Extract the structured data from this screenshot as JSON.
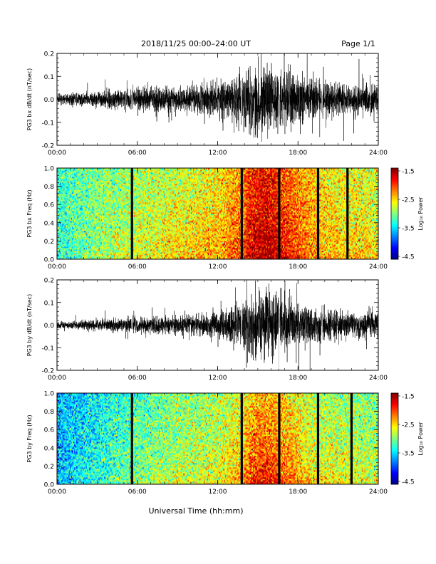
{
  "header": {
    "title": "2018/11/25  00:00–24:00 UT",
    "page_label": "Page 1/1"
  },
  "footer": {
    "xlabel": "Universal Time (hh:mm)"
  },
  "colorbar": {
    "ticks": [
      "-1.5",
      "-2.5",
      "-3.5",
      "-4.5"
    ],
    "label": "Log₁₀ Power",
    "range": [
      -4.5,
      -1.5
    ]
  },
  "chart_data": [
    {
      "type": "line",
      "ylabel": "PG3 bx dB/dt (nT/sec)",
      "xticks": [
        "00:00",
        "06:00",
        "12:00",
        "18:00",
        "24:00"
      ],
      "xlim": [
        0,
        24
      ],
      "ylim": [
        -0.2,
        0.2
      ],
      "yticks": [
        "-0.2",
        "-0.1",
        "0.0",
        "0.1",
        "0.2"
      ],
      "x": [
        0,
        2,
        4,
        6,
        8,
        10,
        12,
        13.5,
        14.5,
        15.5,
        16.5,
        17.5,
        18.5,
        19.5,
        20.5,
        21.5,
        22.5,
        23.5,
        24
      ],
      "amplitude": [
        0.02,
        0.03,
        0.04,
        0.05,
        0.06,
        0.06,
        0.08,
        0.11,
        0.16,
        0.16,
        0.14,
        0.14,
        0.1,
        0.09,
        0.07,
        0.07,
        0.07,
        0.08,
        0.06
      ],
      "gaps": [
        5.6,
        13.8,
        16.6,
        19.8
      ]
    },
    {
      "type": "heatmap",
      "ylabel": "PG3 bx Freq (Hz)",
      "xticks": [
        "00:00",
        "06:00",
        "12:00",
        "18:00",
        "24:00"
      ],
      "xlim": [
        0,
        24
      ],
      "ylim": [
        0,
        1
      ],
      "yticks": [
        "0.0",
        "0.2",
        "0.4",
        "0.6",
        "0.8",
        "1.0"
      ],
      "x": [
        0,
        3,
        6,
        9,
        12,
        13.8,
        14.5,
        15.5,
        16.5,
        17.5,
        18.5,
        20,
        21.5,
        23,
        24
      ],
      "level_low_freq": [
        -3.3,
        -2.9,
        -2.6,
        -2.4,
        -2.3,
        -2.0,
        -1.6,
        -1.5,
        -1.6,
        -1.9,
        -2.1,
        -2.3,
        -2.4,
        -2.4,
        -2.5
      ],
      "level_high_freq": [
        -3.2,
        -3.0,
        -2.9,
        -2.8,
        -2.6,
        -2.3,
        -2.0,
        -1.9,
        -2.0,
        -2.2,
        -2.4,
        -2.6,
        -2.7,
        -2.7,
        -2.8
      ],
      "gaps": [
        5.6,
        13.8,
        16.6,
        19.5,
        21.7
      ]
    },
    {
      "type": "line",
      "ylabel": "PG3 by dB/dt (nT/sec)",
      "xticks": [
        "00:00",
        "06:00",
        "12:00",
        "18:00",
        "24:00"
      ],
      "xlim": [
        0,
        24
      ],
      "ylim": [
        -0.2,
        0.2
      ],
      "yticks": [
        "-0.2",
        "-0.1",
        "0.0",
        "0.1",
        "0.2"
      ],
      "x": [
        0,
        2,
        4,
        6,
        8,
        10,
        12,
        13.5,
        14.5,
        15.5,
        16.5,
        17.5,
        18.5,
        19.5,
        20.5,
        21.5,
        22.5,
        23.5,
        24
      ],
      "amplitude": [
        0.015,
        0.02,
        0.03,
        0.04,
        0.04,
        0.05,
        0.06,
        0.1,
        0.15,
        0.16,
        0.13,
        0.11,
        0.09,
        0.08,
        0.07,
        0.06,
        0.06,
        0.07,
        0.06
      ],
      "gaps": [
        5.6,
        13.8,
        16.6,
        19.8
      ]
    },
    {
      "type": "heatmap",
      "ylabel": "PG3 by Freq (Hz)",
      "xticks": [
        "00:00",
        "06:00",
        "12:00",
        "18:00",
        "24:00"
      ],
      "xlim": [
        0,
        24
      ],
      "ylim": [
        0,
        1
      ],
      "yticks": [
        "0.0",
        "0.2",
        "0.4",
        "0.6",
        "0.8",
        "1.0"
      ],
      "x": [
        0,
        3,
        6,
        9,
        12,
        13.8,
        14.5,
        15.5,
        16.5,
        17.5,
        18.5,
        20,
        21.5,
        23,
        24
      ],
      "level_low_freq": [
        -3.6,
        -3.2,
        -2.9,
        -2.7,
        -2.6,
        -2.3,
        -1.8,
        -1.7,
        -1.8,
        -2.1,
        -2.3,
        -2.5,
        -2.6,
        -2.6,
        -2.7
      ],
      "level_high_freq": [
        -3.6,
        -3.4,
        -3.2,
        -3.0,
        -2.9,
        -2.7,
        -2.5,
        -2.4,
        -2.5,
        -2.6,
        -2.8,
        -2.9,
        -2.9,
        -3.0,
        -3.0
      ],
      "gaps": [
        5.6,
        13.8,
        16.6,
        19.5,
        22.0
      ]
    }
  ]
}
